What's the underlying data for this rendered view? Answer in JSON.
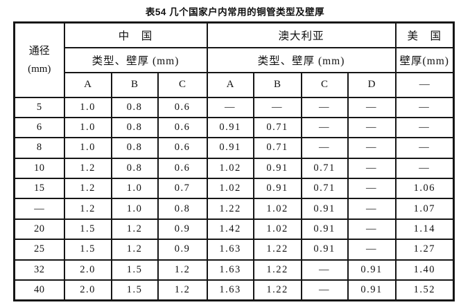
{
  "title": "表54 几个国家户内常用的铜管类型及壁厚",
  "table": {
    "diameter_header": "通径",
    "diameter_unit": "(mm)",
    "groups": [
      {
        "name": "中　国",
        "sub": "类型、壁厚 (mm)",
        "cols": [
          "A",
          "B",
          "C"
        ]
      },
      {
        "name": "澳大利亚",
        "sub": "类型、壁厚 (mm)",
        "cols": [
          "A",
          "B",
          "C",
          "D"
        ]
      },
      {
        "name": "美　国",
        "sub": "壁厚(mm)",
        "cols": [
          "—"
        ]
      }
    ],
    "rows": [
      [
        "5",
        "1.0",
        "0.8",
        "0.6",
        "—",
        "—",
        "—",
        "—",
        "—"
      ],
      [
        "6",
        "1.0",
        "0.8",
        "0.6",
        "0.91",
        "0.71",
        "—",
        "—",
        "—"
      ],
      [
        "8",
        "1.0",
        "0.8",
        "0.6",
        "0.91",
        "0.71",
        "—",
        "—",
        "—"
      ],
      [
        "10",
        "1.2",
        "0.8",
        "0.6",
        "1.02",
        "0.91",
        "0.71",
        "—",
        "—"
      ],
      [
        "15",
        "1.2",
        "1.0",
        "0.7",
        "1.02",
        "0.91",
        "0.71",
        "—",
        "1.06"
      ],
      [
        "—",
        "1.2",
        "1.0",
        "0.8",
        "1.22",
        "1.02",
        "0.91",
        "—",
        "1.07"
      ],
      [
        "20",
        "1.5",
        "1.2",
        "0.9",
        "1.42",
        "1.02",
        "0.91",
        "—",
        "1.14"
      ],
      [
        "25",
        "1.5",
        "1.2",
        "0.9",
        "1.63",
        "1.22",
        "0.91",
        "—",
        "1.27"
      ],
      [
        "32",
        "2.0",
        "1.5",
        "1.2",
        "1.63",
        "1.22",
        "—",
        "0.91",
        "1.40"
      ],
      [
        "40",
        "2.0",
        "1.5",
        "1.2",
        "1.63",
        "1.22",
        "—",
        "0.91",
        "1.52"
      ]
    ]
  }
}
